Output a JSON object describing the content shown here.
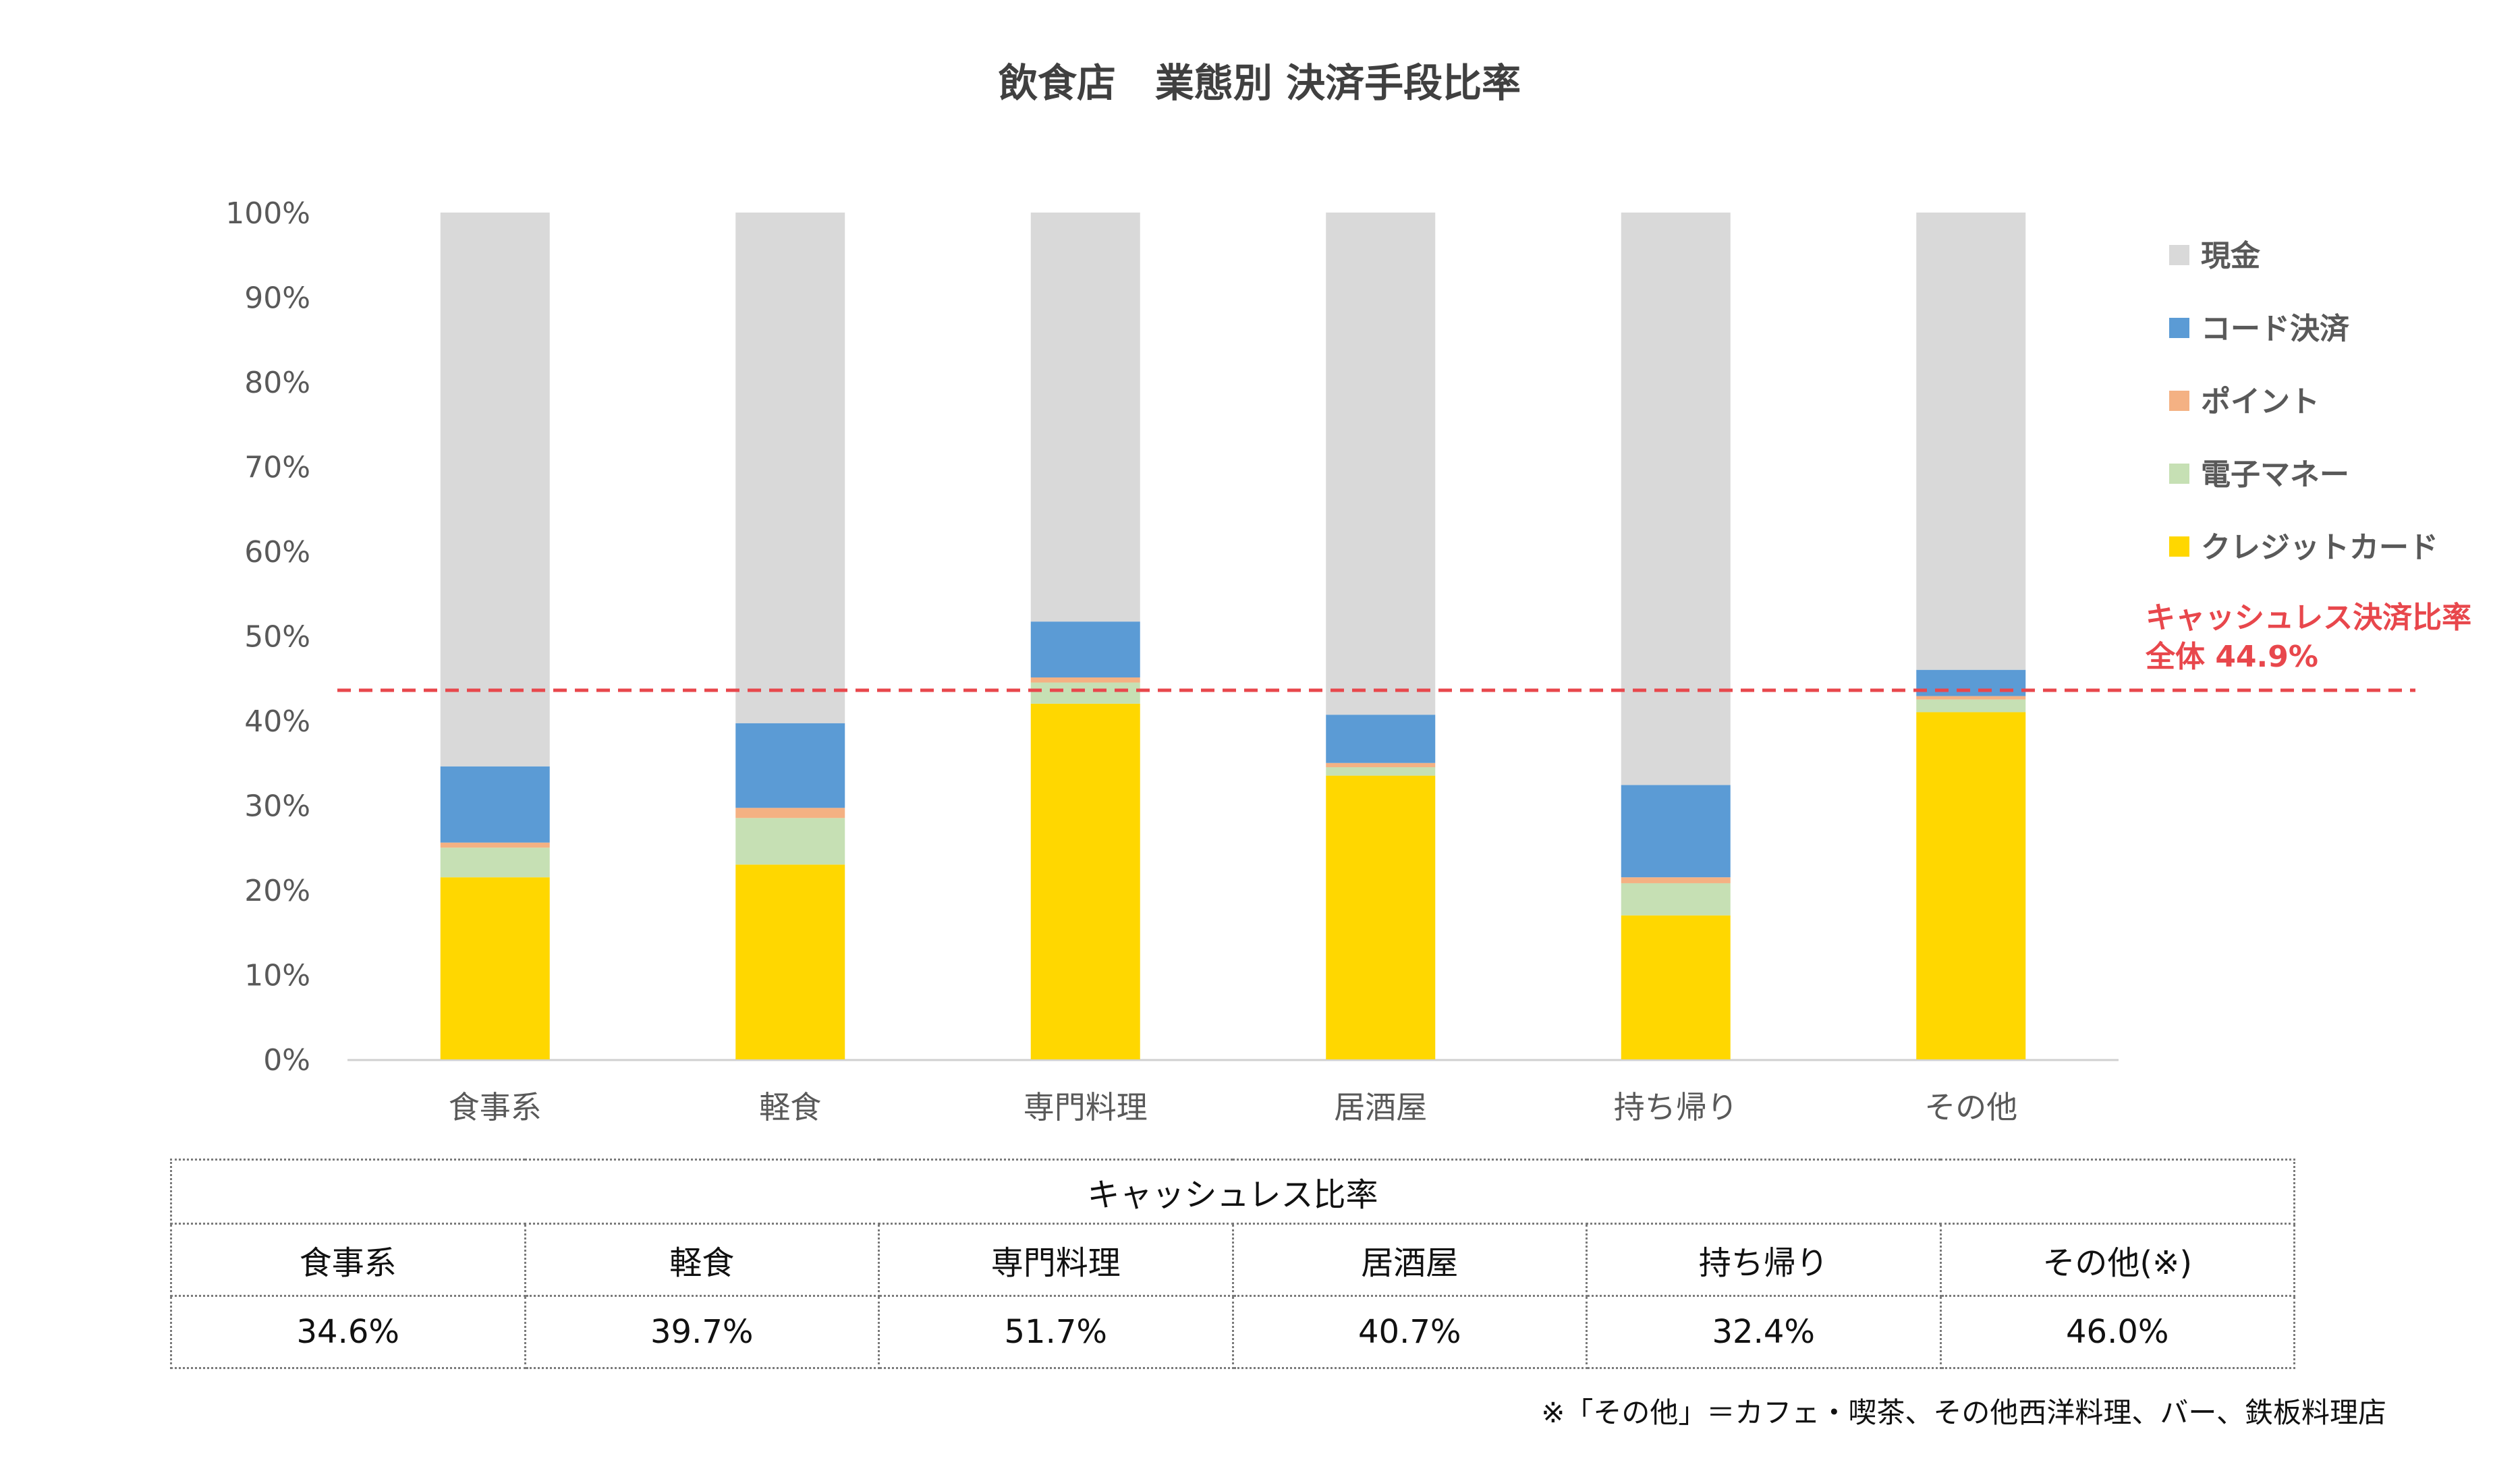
{
  "chart_data": {
    "type": "stacked-bar",
    "title": "飲食店　業態別 決済手段比率",
    "categories": [
      "食事系",
      "軽食",
      "専門料理",
      "居酒屋",
      "持ち帰り",
      "その他"
    ],
    "y_ticks": [
      "0%",
      "10%",
      "20%",
      "30%",
      "40%",
      "50%",
      "60%",
      "70%",
      "80%",
      "90%",
      "100%"
    ],
    "ylim": [
      0,
      100
    ],
    "legend_position": "right",
    "series": [
      {
        "name": "クレジットカード",
        "color": "#FFD700",
        "values": [
          21.5,
          23.0,
          42.0,
          33.5,
          17.0,
          41.0
        ]
      },
      {
        "name": "電子マネー",
        "color": "#C6E0B4",
        "values": [
          3.5,
          5.5,
          2.5,
          1.0,
          3.8,
          1.5
        ]
      },
      {
        "name": "ポイント",
        "color": "#F4B183",
        "values": [
          0.6,
          1.2,
          0.6,
          0.5,
          0.7,
          0.4
        ]
      },
      {
        "name": "コード決済",
        "color": "#5B9BD5",
        "values": [
          9.0,
          10.0,
          6.6,
          5.7,
          10.9,
          3.1
        ]
      },
      {
        "name": "現金",
        "color": "#D9D9D9",
        "values": [
          65.4,
          60.3,
          48.3,
          59.3,
          67.6,
          54.0
        ]
      }
    ],
    "reference_line": {
      "value": 44.9,
      "color": "#E8474C",
      "label_line1": "キャッシュレス決済比率",
      "label_line2": "全体 44.9%"
    }
  },
  "table": {
    "caption": "キャッシュレス比率",
    "headers": [
      "食事系",
      "軽食",
      "専門料理",
      "居酒屋",
      "持ち帰り",
      "その他(※)"
    ],
    "values": [
      "34.6%",
      "39.7%",
      "51.7%",
      "40.7%",
      "32.4%",
      "46.0%"
    ]
  },
  "footnote": "※「その他」＝カフェ・喫茶、その他西洋料理、バー、鉄板料理店"
}
